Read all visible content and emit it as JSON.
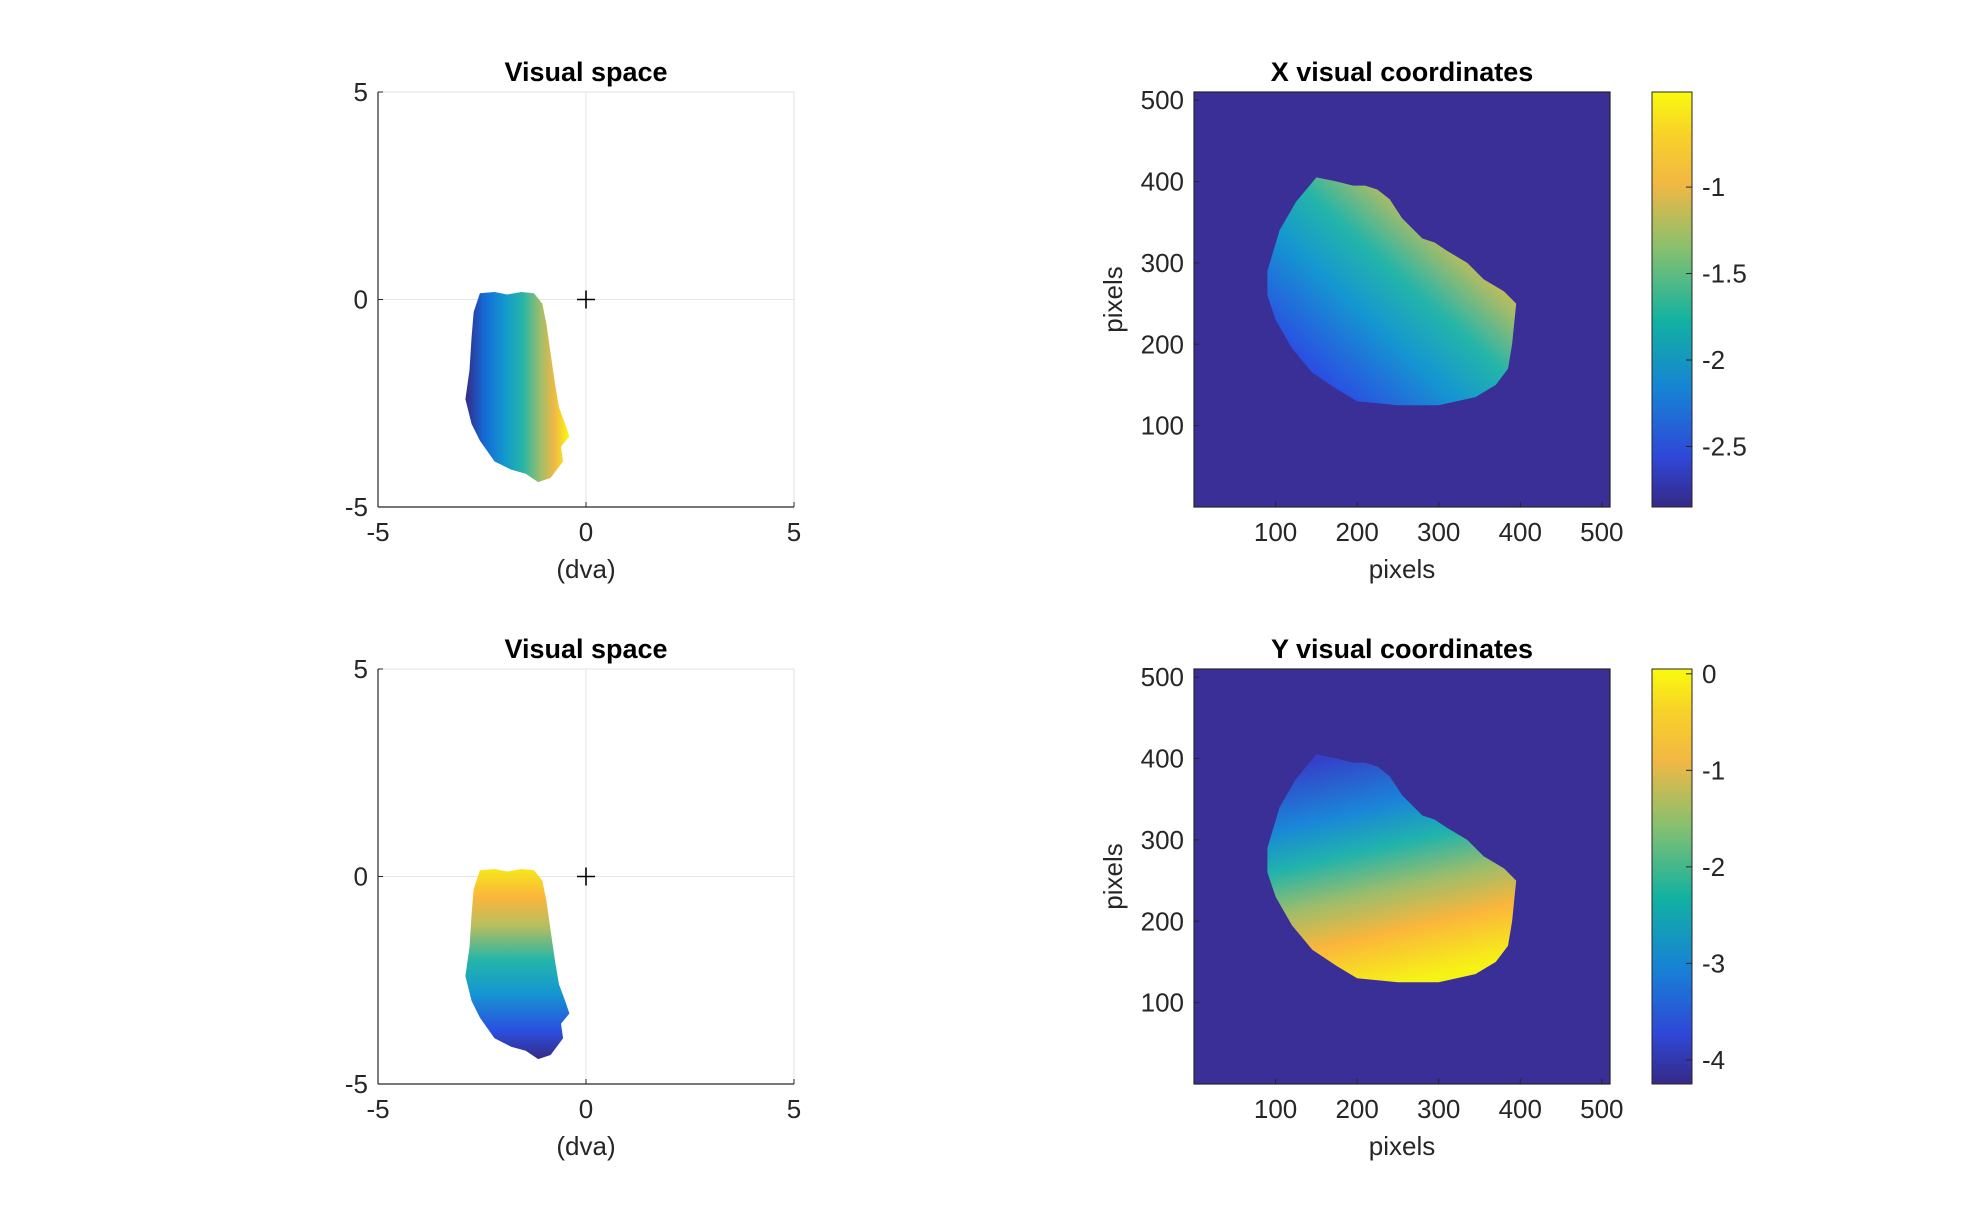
{
  "chart_data": [
    {
      "type": "scatter",
      "title": "Visual space",
      "xlabel": "(dva)",
      "ylabel": "",
      "xlim": [
        -5,
        5
      ],
      "ylim": [
        -5,
        5
      ],
      "xticks": [
        "-5",
        "0",
        "5"
      ],
      "yticks": [
        "5",
        "0",
        "-5"
      ],
      "grid": true,
      "color_by": "x",
      "colormap": "parula",
      "fixation_marker": {
        "x": 0,
        "y": 0,
        "symbol": "+"
      },
      "region_extent": {
        "x": [
          -2.9,
          -0.4
        ],
        "y": [
          -4.4,
          0.2
        ]
      }
    },
    {
      "type": "heatmap",
      "title": "X visual coordinates",
      "xlabel": "pixels",
      "ylabel": "pixels",
      "xlim": [
        0,
        510
      ],
      "ylim": [
        0,
        510
      ],
      "xticks": [
        "100",
        "200",
        "300",
        "400",
        "500"
      ],
      "yticks": [
        "500",
        "400",
        "300",
        "200",
        "100"
      ],
      "colormap": "parula",
      "colorbar": {
        "ticks": [
          "-1",
          "-1.5",
          "-2",
          "-2.5"
        ],
        "values": [
          -1,
          -1.5,
          -2,
          -2.5
        ],
        "range": [
          -2.85,
          -0.45
        ]
      }
    },
    {
      "type": "scatter",
      "title": "Visual space",
      "xlabel": "(dva)",
      "ylabel": "",
      "xlim": [
        -5,
        5
      ],
      "ylim": [
        -5,
        5
      ],
      "xticks": [
        "-5",
        "0",
        "5"
      ],
      "yticks": [
        "5",
        "0",
        "-5"
      ],
      "grid": true,
      "color_by": "y",
      "colormap": "parula",
      "fixation_marker": {
        "x": 0,
        "y": 0,
        "symbol": "+"
      },
      "region_extent": {
        "x": [
          -2.9,
          -0.4
        ],
        "y": [
          -4.4,
          0.2
        ]
      }
    },
    {
      "type": "heatmap",
      "title": "Y visual coordinates",
      "xlabel": "pixels",
      "ylabel": "pixels",
      "xlim": [
        0,
        510
      ],
      "ylim": [
        0,
        510
      ],
      "xticks": [
        "100",
        "200",
        "300",
        "400",
        "500"
      ],
      "yticks": [
        "500",
        "400",
        "300",
        "200",
        "100"
      ],
      "colormap": "parula",
      "colorbar": {
        "ticks": [
          "0",
          "-1",
          "-2",
          "-3",
          "-4"
        ],
        "values": [
          0,
          -1,
          -2,
          -3,
          -4
        ],
        "range": [
          -4.25,
          0.05
        ]
      }
    }
  ],
  "colors": {
    "parula_dark": "#352a87",
    "parula_blue": "#1582d1",
    "parula_teal": "#12b2a1",
    "parula_green": "#a5be6a",
    "parula_orange": "#fcbb3e",
    "parula_yellow": "#f9fb0e",
    "background_field": "#3a2f96"
  }
}
